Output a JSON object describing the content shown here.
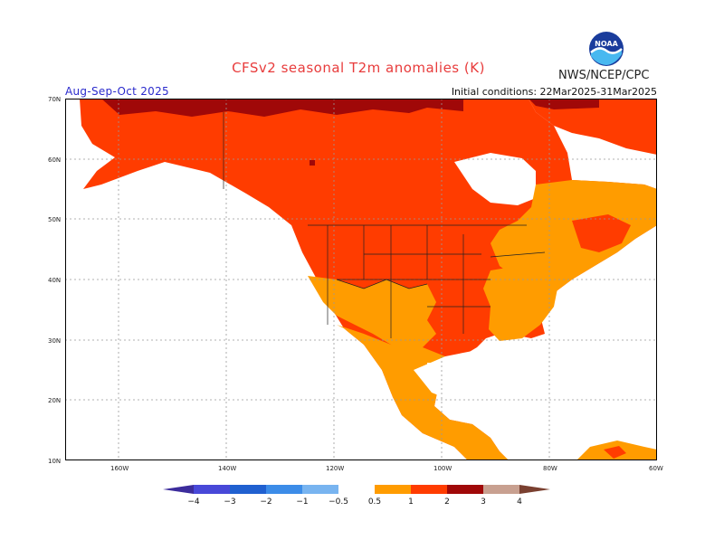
{
  "header": {
    "title": "CFSv2 seasonal T2m anomalies (K)",
    "period": "Aug-Sep-Oct 2025",
    "initial_conditions": "Initial conditions: 22Mar2025-31Mar2025",
    "agency": "NWS/NCEP/CPC",
    "logo_text": "NOAA"
  },
  "map": {
    "lon_range": [
      170,
      60
    ],
    "lat_range": [
      10,
      70
    ],
    "lat_labels": [
      "70N",
      "60N",
      "50N",
      "40N",
      "30N",
      "20N",
      "10N"
    ],
    "lon_labels": [
      "160W",
      "140W",
      "120W",
      "100W",
      "80W",
      "60W"
    ],
    "grid_lon": [
      160,
      140,
      120,
      100,
      80
    ],
    "grid_lat": [
      60,
      50,
      40,
      30,
      20
    ]
  },
  "legend": {
    "tick_labels": [
      "−4",
      "−3",
      "−2",
      "−1",
      "−0.5",
      "0.5",
      "1",
      "2",
      "3",
      "4"
    ],
    "bins": [
      {
        "label": "< -4",
        "color": "#3c2c9c"
      },
      {
        "label": "-4 to -3",
        "color": "#4848d8"
      },
      {
        "label": "-3 to -2",
        "color": "#2060d0"
      },
      {
        "label": "-2 to -1",
        "color": "#3c8ce8"
      },
      {
        "label": "-1 to -0.5",
        "color": "#78b4f0"
      },
      {
        "label": "-0.5 to 0.5",
        "color": "#ffffff"
      },
      {
        "label": "0.5 to 1",
        "color": "#ff9c00"
      },
      {
        "label": "1 to 2",
        "color": "#ff3c00"
      },
      {
        "label": "2 to 3",
        "color": "#a00808"
      },
      {
        "label": "3 to 4",
        "color": "#c8a090"
      },
      {
        "label": "> 4",
        "color": "#7a4030"
      }
    ]
  }
}
